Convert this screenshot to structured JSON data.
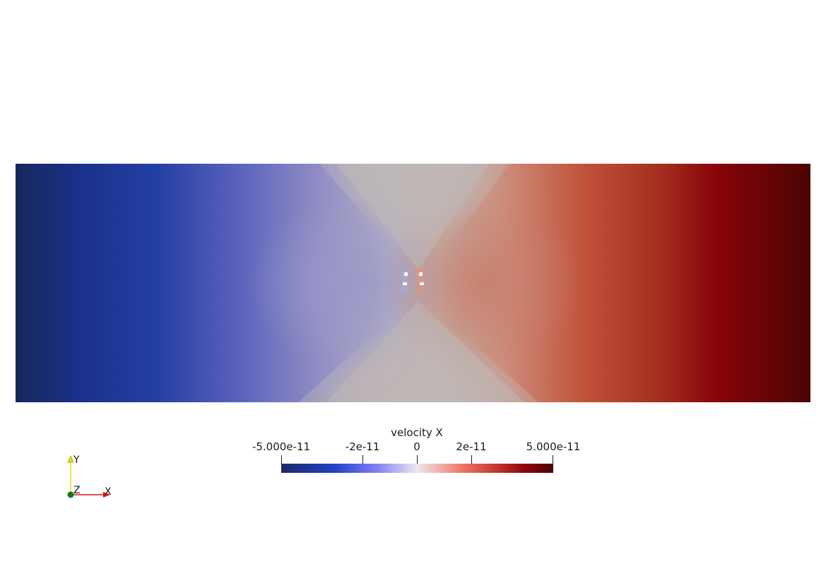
{
  "scalar_field": {
    "name": "velocity X",
    "colormap": [
      "#1a2a66",
      "#1e3aa0",
      "#5e64c0",
      "#9d9acb",
      "#c0bcbc",
      "#cc8877",
      "#c04a33",
      "#8b0000",
      "#4a0500"
    ]
  },
  "colorbar": {
    "title": "velocity X",
    "tick_labels": [
      "-5.000e-11",
      "-2e-11",
      "0",
      "2e-11",
      "5.000e-11"
    ],
    "tick_values": [
      -5e-11,
      -2e-11,
      0,
      2e-11,
      5e-11
    ],
    "range": [
      -5e-11,
      5e-11
    ]
  },
  "orientation_axes": {
    "x_label": "X",
    "y_label": "Y",
    "z_label": "Z",
    "x_color": "#e01010",
    "y_color": "#e0e010",
    "z_color": "#0a7a20"
  }
}
